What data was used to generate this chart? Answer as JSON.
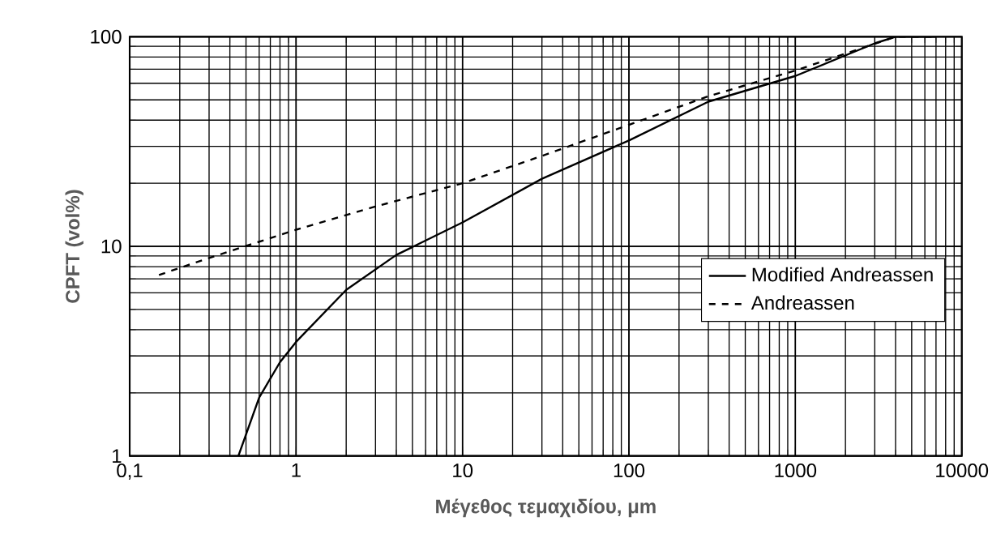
{
  "chart_data": {
    "type": "line",
    "xlabel": "Μέγεθος τεμαχιδίου, μm",
    "ylabel": "CPFT (vol%)",
    "log": "xy",
    "xlim": [
      0.1,
      10000
    ],
    "ylim": [
      1,
      100
    ],
    "xticks": [
      {
        "value": 0.1,
        "label": "0,1"
      },
      1,
      10,
      100,
      1000,
      10000
    ],
    "yticks": [
      1,
      10,
      100
    ],
    "grid": true,
    "legend": "right",
    "marker": "none",
    "series": [
      {
        "name": "Modified Andreassen",
        "color": "#000000",
        "line_style": "solid",
        "x": [
          0.45,
          0.6,
          0.8,
          1,
          2,
          4,
          10,
          30,
          100,
          300,
          1000,
          3000,
          4000,
          7000
        ],
        "values": [
          1,
          1.9,
          2.8,
          3.5,
          6.2,
          9.1,
          13,
          21,
          32,
          49,
          65,
          93,
          100,
          100
        ]
      },
      {
        "name": "Andreassen",
        "color": "#000000",
        "line_style": "dashed",
        "x": [
          0.15,
          0.3,
          1,
          3,
          10,
          30,
          100,
          300,
          1000,
          4000,
          7000
        ],
        "values": [
          7.3,
          8.8,
          12,
          15.5,
          20,
          27,
          38,
          52,
          69,
          100,
          100
        ]
      }
    ]
  }
}
